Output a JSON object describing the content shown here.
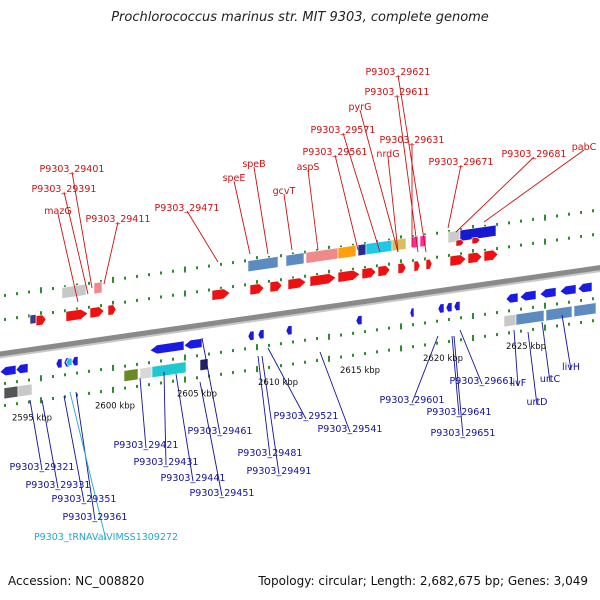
{
  "title": "Prochlorococcus marinus str. MIT 9303, complete genome",
  "footer": {
    "accession": "Accession: NC_008820",
    "summary": "Topology: circular; Length: 2,682,675 bp; Genes: 3,049"
  },
  "colors": {
    "forward_label": "#cc1111",
    "reverse_label": "#12129a",
    "rna_label": "#22a7d0",
    "backbone": "#8a8a8a"
  },
  "scale_labels": [
    "2595 kbp",
    "2600 kbp",
    "2605 kbp",
    "2610 kbp",
    "2615 kbp",
    "2620 kbp",
    "2625 kbp"
  ],
  "forward_labels": [
    "P9303_29621",
    "P9303_29611",
    "pyrG",
    "P9303_29571",
    "P9303_29631",
    "P9303_29561",
    "nrdG",
    "speB",
    "aspS",
    "P9303_29681",
    "pabC",
    "P9303_29671",
    "P9303_29401",
    "speE",
    "gcvT",
    "P9303_29391",
    "mazG",
    "P9303_29471",
    "P9303_29411"
  ],
  "reverse_labels": [
    "livH",
    "urtC",
    "livF",
    "urtD",
    "P9303_29661",
    "P9303_29601",
    "P9303_29641",
    "P9303_29651",
    "P9303_29521",
    "P9303_29541",
    "P9303_29461",
    "P9303_29421",
    "P9303_29431",
    "P9303_29481",
    "P9303_29491",
    "P9303_29441",
    "P9303_29451",
    "P9303_29321",
    "P9303_29331",
    "P9303_29351",
    "P9303_29361"
  ],
  "rna_labels": [
    "P9303_tRNAValVIMSS1309272"
  ]
}
